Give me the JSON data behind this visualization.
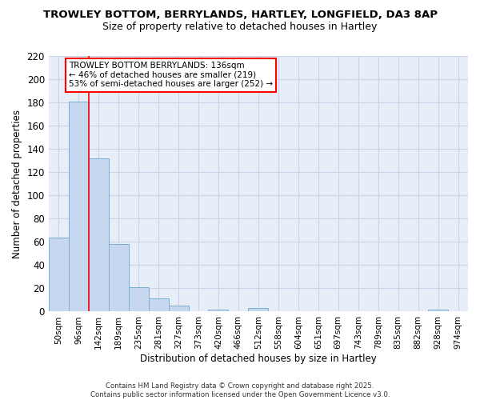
{
  "title1": "TROWLEY BOTTOM, BERRYLANDS, HARTLEY, LONGFIELD, DA3 8AP",
  "title2": "Size of property relative to detached houses in Hartley",
  "xlabel": "Distribution of detached houses by size in Hartley",
  "ylabel": "Number of detached properties",
  "categories": [
    "50sqm",
    "96sqm",
    "142sqm",
    "189sqm",
    "235sqm",
    "281sqm",
    "327sqm",
    "373sqm",
    "420sqm",
    "466sqm",
    "512sqm",
    "558sqm",
    "604sqm",
    "651sqm",
    "697sqm",
    "743sqm",
    "789sqm",
    "835sqm",
    "882sqm",
    "928sqm",
    "974sqm"
  ],
  "values": [
    64,
    181,
    132,
    58,
    21,
    11,
    5,
    0,
    2,
    0,
    3,
    0,
    0,
    0,
    0,
    0,
    0,
    0,
    0,
    2,
    0
  ],
  "bar_color": "#c5d8f0",
  "bar_edge_color": "#7aadd4",
  "red_line_x": 1.5,
  "annotation_text": "TROWLEY BOTTOM BERRYLANDS: 136sqm\n← 46% of detached houses are smaller (219)\n53% of semi-detached houses are larger (252) →",
  "annotation_box_color": "white",
  "annotation_box_edge": "red",
  "ylim": [
    0,
    220
  ],
  "yticks": [
    0,
    20,
    40,
    60,
    80,
    100,
    120,
    140,
    160,
    180,
    200,
    220
  ],
  "plot_bg_color": "#e8eef8",
  "fig_bg_color": "#ffffff",
  "grid_color": "#c8d4e8",
  "footer": "Contains HM Land Registry data © Crown copyright and database right 2025.\nContains public sector information licensed under the Open Government Licence v3.0."
}
